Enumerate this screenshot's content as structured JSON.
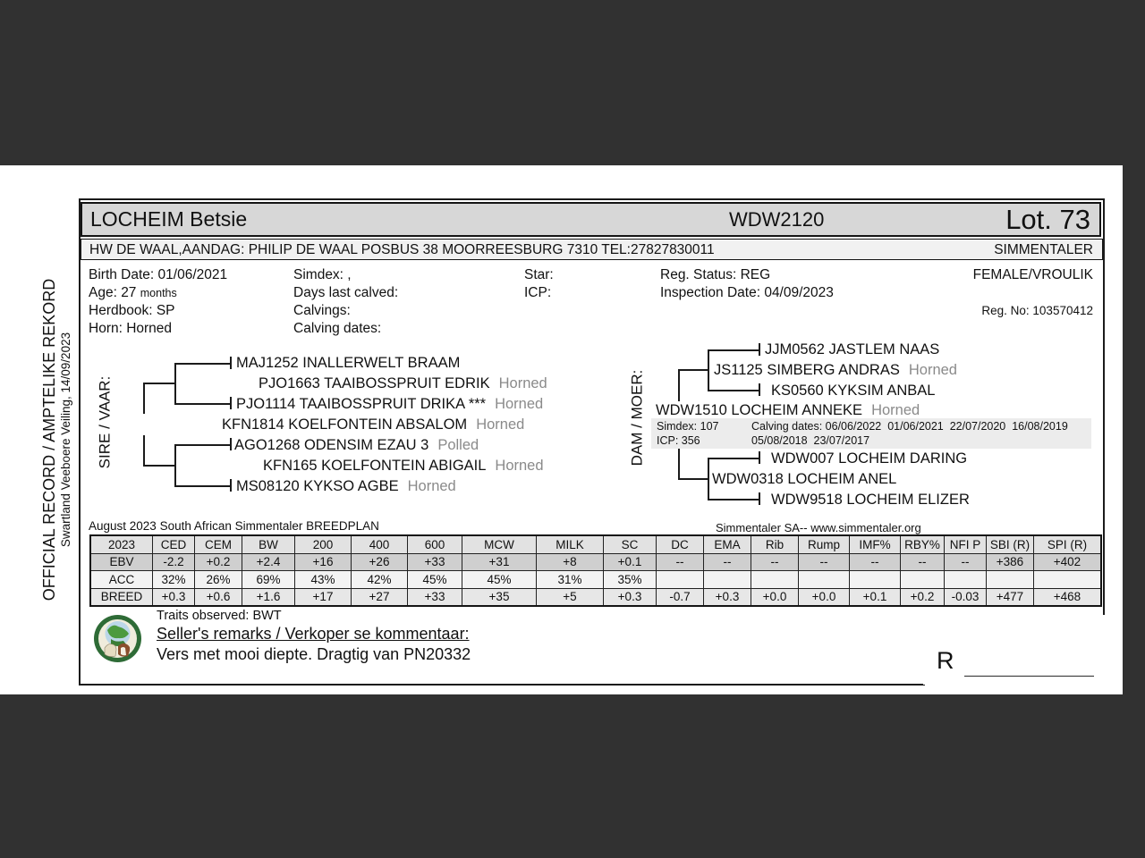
{
  "side": {
    "official": "OFFICIAL RECORD / AMPTELIKE REKORD",
    "event": "Swartland Veeboere Veiling, 14/09/2023"
  },
  "header": {
    "name": "LOCHEIM Betsie",
    "id": "WDW2120",
    "lot": "Lot. 73",
    "breeder": "HW DE WAAL,AANDAG: PHILIP DE WAAL POSBUS 38 MOORREESBURG 7310 TEL:27827830011",
    "breed": "SIMMENTALER"
  },
  "details": {
    "birth_date": "Birth Date: 01/06/2021",
    "age": "Age: 27",
    "age_unit": "months",
    "herdbook": "Herdbook: SP",
    "horn": "Horn: Horned",
    "simdex": "Simdex: ,",
    "days_last_calved": "Days last calved:",
    "calvings": "Calvings:",
    "calving_dates": "Calving dates:",
    "star": "Star:",
    "icp": "ICP:",
    "reg_status": "Reg. Status: REG",
    "inspection_date": "Inspection Date: 04/09/2023",
    "sex": "FEMALE/VROULIK",
    "reg_no": "Reg. No: 103570412"
  },
  "pedigree": {
    "sire_label": "SIRE / VAAR:",
    "dam_label": "DAM / MOER:",
    "sire": [
      {
        "name": "MAJ1252 INALLERWELT BRAAM",
        "tag": ""
      },
      {
        "name": "PJO1663 TAAIBOSSPRUIT EDRIK",
        "tag": "Horned"
      },
      {
        "name": "PJO1114 TAAIBOSSPRUIT DRIKA ***",
        "tag": "Horned"
      },
      {
        "name": "KFN1814 KOELFONTEIN ABSALOM",
        "tag": "Horned"
      },
      {
        "name": "AGO1268 ODENSIM EZAU 3",
        "tag": "Polled"
      },
      {
        "name": "KFN165 KOELFONTEIN ABIGAIL",
        "tag": "Horned"
      },
      {
        "name": "MS08120 KYKSO AGBE",
        "tag": "Horned"
      }
    ],
    "dam": [
      {
        "name": "JJM0562 JASTLEM NAAS",
        "tag": ""
      },
      {
        "name": "JS1125 SIMBERG ANDRAS",
        "tag": "Horned"
      },
      {
        "name": "KS0560 KYKSIM ANBAL",
        "tag": ""
      },
      {
        "name": "WDW1510 LOCHEIM ANNEKE",
        "tag": "Horned"
      },
      {
        "name": "WDW007 LOCHEIM DARING",
        "tag": ""
      },
      {
        "name": "WDW0318 LOCHEIM ANEL",
        "tag": ""
      },
      {
        "name": "WDW9518 LOCHEIM ELIZER",
        "tag": ""
      }
    ],
    "dam_stats": {
      "simdex": "Simdex: 107",
      "icp": "ICP: 356",
      "calving_line1": "Calving dates: 06/06/2022  01/06/2021  22/07/2020  16/08/2019",
      "calving_line2": "05/08/2018  23/07/2017"
    }
  },
  "breedplan": {
    "caption": "August 2023 South African Simmentaler BREEDPLAN",
    "source": "Simmentaler SA-- www.simmentaler.org",
    "columns": [
      "2023",
      "CED",
      "CEM",
      "BW",
      "200",
      "400",
      "600",
      "MCW",
      "MILK",
      "SC",
      "DC",
      "EMA",
      "Rib",
      "Rump",
      "IMF%",
      "RBY%",
      "NFI P",
      "SBI (R)",
      "SPI (R)"
    ],
    "rows": [
      {
        "label": "EBV",
        "values": [
          "-2.2",
          "+0.2",
          "+2.4",
          "+16",
          "+26",
          "+33",
          "+31",
          "+8",
          "+0.1",
          "--",
          "--",
          "--",
          "--",
          "--",
          "--",
          "--",
          "+386",
          "+402"
        ]
      },
      {
        "label": "ACC",
        "values": [
          "32%",
          "26%",
          "69%",
          "43%",
          "42%",
          "45%",
          "45%",
          "31%",
          "35%",
          "",
          "",
          "",
          "",
          "",
          "",
          "",
          "",
          ""
        ]
      },
      {
        "label": "BREED",
        "values": [
          "+0.3",
          "+0.6",
          "+1.6",
          "+17",
          "+27",
          "+33",
          "+35",
          "+5",
          "+0.3",
          "-0.7",
          "+0.3",
          "+0.0",
          "+0.0",
          "+0.1",
          "+0.2",
          "-0.03",
          "+477",
          "+468"
        ]
      }
    ]
  },
  "footer": {
    "traits": "Traits observed: BWT",
    "remarks_heading": "Seller's remarks / Verkoper se kommentaar:",
    "remarks": "Vers met mooi diepte. Dragtig van PN20332",
    "price_prefix": "R"
  },
  "colors": {
    "background_dark": "#313131",
    "title_bar_gray": "#d7d7d7",
    "ebv_row_gray": "#cfcfcf",
    "logo_green": "#2e6b36"
  }
}
